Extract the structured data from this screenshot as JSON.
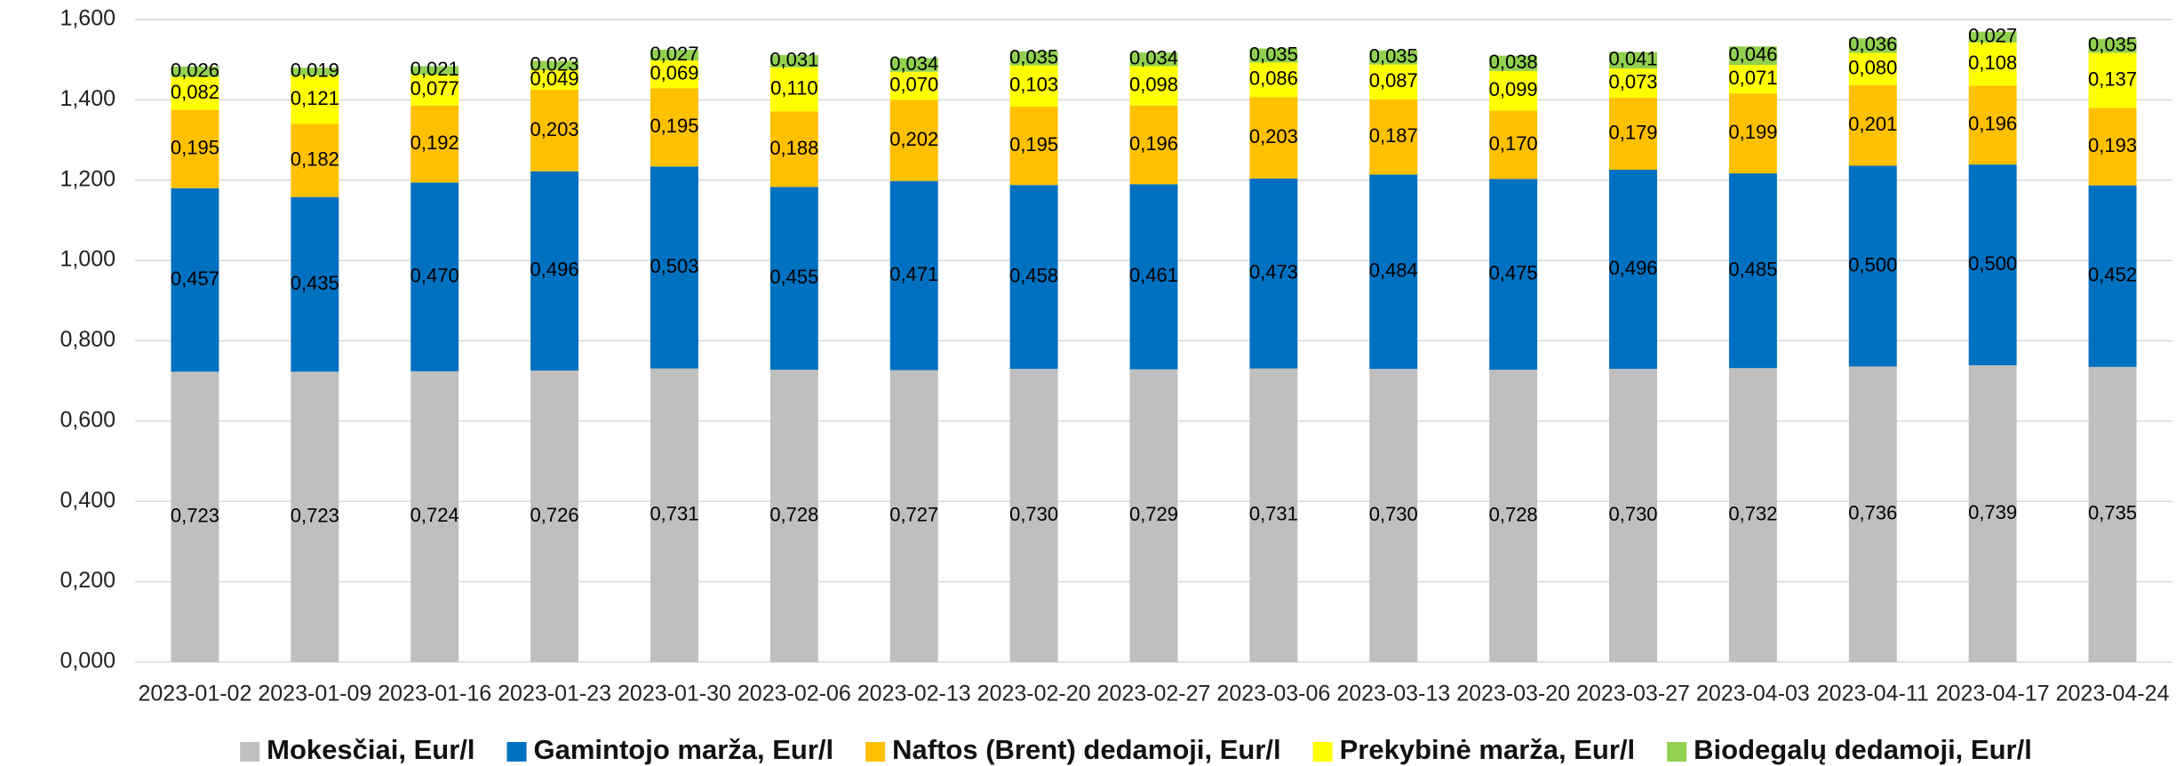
{
  "chart_data": {
    "type": "stacked_bar",
    "categories": [
      "2023-01-02",
      "2023-01-09",
      "2023-01-16",
      "2023-01-23",
      "2023-01-30",
      "2023-02-06",
      "2023-02-13",
      "2023-02-20",
      "2023-02-27",
      "2023-03-06",
      "2023-03-13",
      "2023-03-20",
      "2023-03-27",
      "2023-04-03",
      "2023-04-11",
      "2023-04-17",
      "2023-04-24"
    ],
    "series": [
      {
        "name": "Mokesčiai, Eur/l",
        "color": "#bfbfbf",
        "values": [
          0.723,
          0.723,
          0.724,
          0.726,
          0.731,
          0.728,
          0.727,
          0.73,
          0.729,
          0.731,
          0.73,
          0.728,
          0.73,
          0.732,
          0.736,
          0.739,
          0.735
        ],
        "value_labels": [
          "0,723",
          "0,723",
          "0,724",
          "0,726",
          "0,731",
          "0,728",
          "0,727",
          "0,730",
          "0,729",
          "0,731",
          "0,730",
          "0,728",
          "0,730",
          "0,732",
          "0,736",
          "0,739",
          "0,735"
        ]
      },
      {
        "name": "Gamintojo marža, Eur/l",
        "color": "#0070c0",
        "values": [
          0.457,
          0.435,
          0.47,
          0.496,
          0.503,
          0.455,
          0.471,
          0.458,
          0.461,
          0.473,
          0.484,
          0.475,
          0.496,
          0.485,
          0.5,
          0.5,
          0.452
        ],
        "value_labels": [
          "0,457",
          "0,435",
          "0,470",
          "0,496",
          "0,503",
          "0,455",
          "0,471",
          "0,458",
          "0,461",
          "0,473",
          "0,484",
          "0,475",
          "0,496",
          "0,485",
          "0,500",
          "0,500",
          "0,452"
        ]
      },
      {
        "name": "Naftos (Brent) dedamoji, Eur/l",
        "color": "#ffc000",
        "values": [
          0.195,
          0.182,
          0.192,
          0.203,
          0.195,
          0.188,
          0.202,
          0.195,
          0.196,
          0.203,
          0.187,
          0.17,
          0.179,
          0.199,
          0.201,
          0.196,
          0.193
        ],
        "value_labels": [
          "0,195",
          "0,182",
          "0,192",
          "0,203",
          "0,195",
          "0,188",
          "0,202",
          "0,195",
          "0,196",
          "0,203",
          "0,187",
          "0,170",
          "0,179",
          "0,199",
          "0,201",
          "0,196",
          "0,193"
        ]
      },
      {
        "name": "Prekybinė marža, Eur/l",
        "color": "#ffff00",
        "values": [
          0.082,
          0.121,
          0.077,
          0.049,
          0.069,
          0.11,
          0.07,
          0.103,
          0.098,
          0.086,
          0.087,
          0.099,
          0.073,
          0.071,
          0.08,
          0.108,
          0.137
        ],
        "value_labels": [
          "0,082",
          "0,121",
          "0,077",
          "0,049",
          "0,069",
          "0,110",
          "0,070",
          "0,103",
          "0,098",
          "0,086",
          "0,087",
          "0,099",
          "0,073",
          "0,071",
          "0,080",
          "0,108",
          "0,137"
        ]
      },
      {
        "name": "Biodegalų dedamoji, Eur/l",
        "color": "#92d050",
        "values": [
          0.026,
          0.019,
          0.021,
          0.023,
          0.027,
          0.031,
          0.034,
          0.035,
          0.034,
          0.035,
          0.035,
          0.038,
          0.041,
          0.046,
          0.036,
          0.027,
          0.035
        ],
        "value_labels": [
          "0,026",
          "0,019",
          "0,021",
          "0,023",
          "0,027",
          "0,031",
          "0,034",
          "0,035",
          "0,034",
          "0,035",
          "0,035",
          "0,038",
          "0,041",
          "0,046",
          "0,036",
          "0,027",
          "0,035"
        ]
      }
    ],
    "ylim": [
      0,
      1.6
    ],
    "yticks": [
      {
        "value": 0,
        "label": "0,000"
      },
      {
        "value": 0.2,
        "label": "0,200"
      },
      {
        "value": 0.4,
        "label": "0,400"
      },
      {
        "value": 0.6,
        "label": "0,600"
      },
      {
        "value": 0.8,
        "label": "0,800"
      },
      {
        "value": 1.0,
        "label": "1,000"
      },
      {
        "value": 1.2,
        "label": "1,200"
      },
      {
        "value": 1.4,
        "label": "1,400"
      },
      {
        "value": 1.6,
        "label": "1,600"
      }
    ],
    "grid": true,
    "legend": "bottom"
  }
}
